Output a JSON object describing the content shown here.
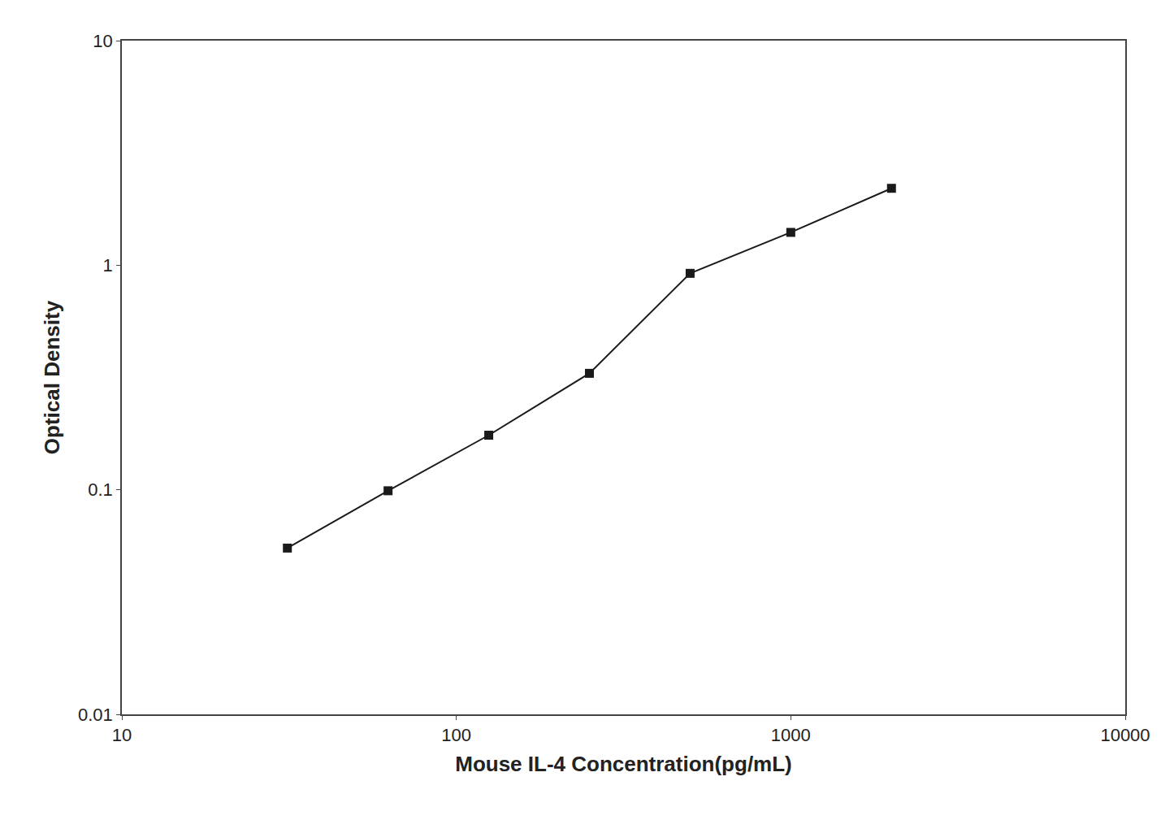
{
  "chart_data": {
    "type": "line",
    "x": [
      31.25,
      62.5,
      125,
      250,
      500,
      1000,
      2000
    ],
    "values": [
      0.055,
      0.099,
      0.175,
      0.33,
      0.92,
      1.4,
      2.2
    ],
    "xlabel": "Mouse IL-4 Concentration(pg/mL)",
    "ylabel": "Optical Density",
    "xlim": [
      10,
      10000
    ],
    "ylim": [
      0.01,
      10
    ],
    "xticks": [
      10,
      100,
      1000,
      10000
    ],
    "yticks": [
      0.01,
      0.1,
      1,
      10
    ],
    "log": true,
    "grid": false,
    "color": "#1a1a1a",
    "marker": "square",
    "line_style": "solid"
  }
}
